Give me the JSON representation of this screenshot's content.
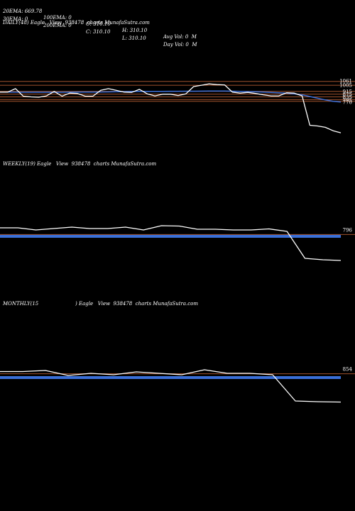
{
  "header": {
    "row1": [
      "20EMA: 669.78",
      "100EMA: 0",
      "O: 310.10",
      "H: 310.10",
      "Avg Vol: 0  M"
    ],
    "row2": [
      "30EMA: 0",
      "200EMA: 0",
      "C: 310.10",
      "L: 310.10",
      "Day Vol: 0  M"
    ]
  },
  "panels": {
    "daily_title": "DAILY(48) Eagle   View  938478  charts MunafaSutra.com",
    "weekly_title": "WEEKLY(19) Eagle   View  938478  charts MunafaSutra.com",
    "monthly_title_left": "MONTHLY(15",
    "monthly_title_right": ") Eagle   View  938478  charts MunafaSutra.com"
  },
  "colors": {
    "background": "#000000",
    "price_line": "#ffffff",
    "ema_line": "#3a6fd8",
    "level_line": "#a0522d"
  },
  "chart_data": [
    {
      "type": "line",
      "title": "DAILY(48)",
      "ylim": [
        280,
        1110
      ],
      "level_labels": [
        "1061",
        "1005",
        "915",
        "875",
        "835",
        "795",
        "770"
      ],
      "levels": [
        1061,
        1005,
        915,
        875,
        835,
        795,
        770
      ],
      "series": [
        {
          "values": [
            905,
            905,
            955,
            845,
            835,
            830,
            850,
            915,
            845,
            890,
            885,
            845,
            845,
            930,
            955,
            930,
            905,
            900,
            945,
            880,
            850,
            875,
            875,
            855,
            880,
            985,
            1005,
            1025,
            1015,
            1010,
            905,
            890,
            900,
            885,
            865,
            850,
            850,
            895,
            890,
            850,
            420,
            410,
            390,
            340,
            310
          ]
        },
        {
          "values": [
            905,
            905,
            904,
            903,
            902,
            902,
            902,
            902,
            903,
            904,
            905,
            906,
            906,
            907,
            908,
            910,
            912,
            914,
            915,
            915,
            916,
            916,
            917,
            917,
            918,
            918,
            919,
            920,
            920,
            920,
            918,
            915,
            912,
            910,
            905,
            900,
            895,
            890,
            880,
            865,
            840,
            815,
            790,
            770,
            760
          ]
        }
      ]
    },
    {
      "type": "line",
      "title": "WEEKLY(19)",
      "ylim": [
        300,
        1100
      ],
      "level_labels": [
        "796"
      ],
      "levels": [
        796
      ],
      "series": [
        {
          "values": [
            890,
            890,
            860,
            880,
            900,
            880,
            880,
            900,
            860,
            920,
            915,
            870,
            870,
            860,
            860,
            875,
            840,
            460,
            440,
            430
          ]
        },
        {
          "values": [
            770,
            770,
            770,
            770,
            770,
            770,
            770,
            770,
            770,
            770,
            770,
            770,
            770,
            770,
            770,
            770,
            770,
            770,
            770,
            770
          ]
        }
      ]
    },
    {
      "type": "line",
      "title": "MONTHLY(15",
      "ylim": [
        300,
        1100
      ],
      "level_labels": [
        "854"
      ],
      "levels": [
        854
      ],
      "series": [
        {
          "values": [
            885,
            885,
            900,
            830,
            860,
            840,
            880,
            860,
            840,
            910,
            860,
            860,
            840,
            470,
            460,
            455
          ]
        },
        {
          "values": [
            800,
            800,
            800,
            800,
            800,
            800,
            800,
            800,
            800,
            800,
            800,
            800,
            800,
            800,
            800,
            800
          ]
        }
      ]
    }
  ]
}
